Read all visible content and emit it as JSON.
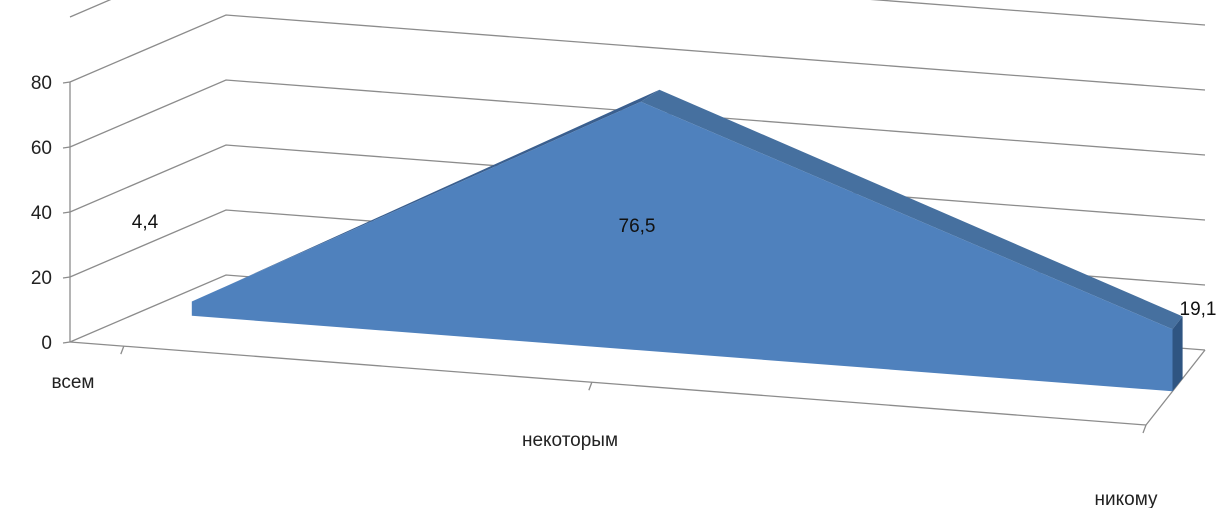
{
  "chart_data": {
    "type": "area",
    "three_d": true,
    "categories": [
      "всем",
      "некоторым",
      "никому"
    ],
    "series": [
      {
        "values": [
          4.4,
          76.5,
          19.1
        ],
        "data_labels": [
          "4,4",
          "76,5",
          "19,1"
        ]
      }
    ],
    "ylim": [
      0,
      80
    ],
    "yticks": [
      "0",
      "20",
      "40",
      "60",
      "80"
    ],
    "grid": true,
    "legend": "none",
    "colors": {
      "front": "#4f81bd",
      "side": "#3f6aa0",
      "top": "#46709f",
      "end": "#2f5582",
      "grid": "#8c8c8c"
    }
  }
}
